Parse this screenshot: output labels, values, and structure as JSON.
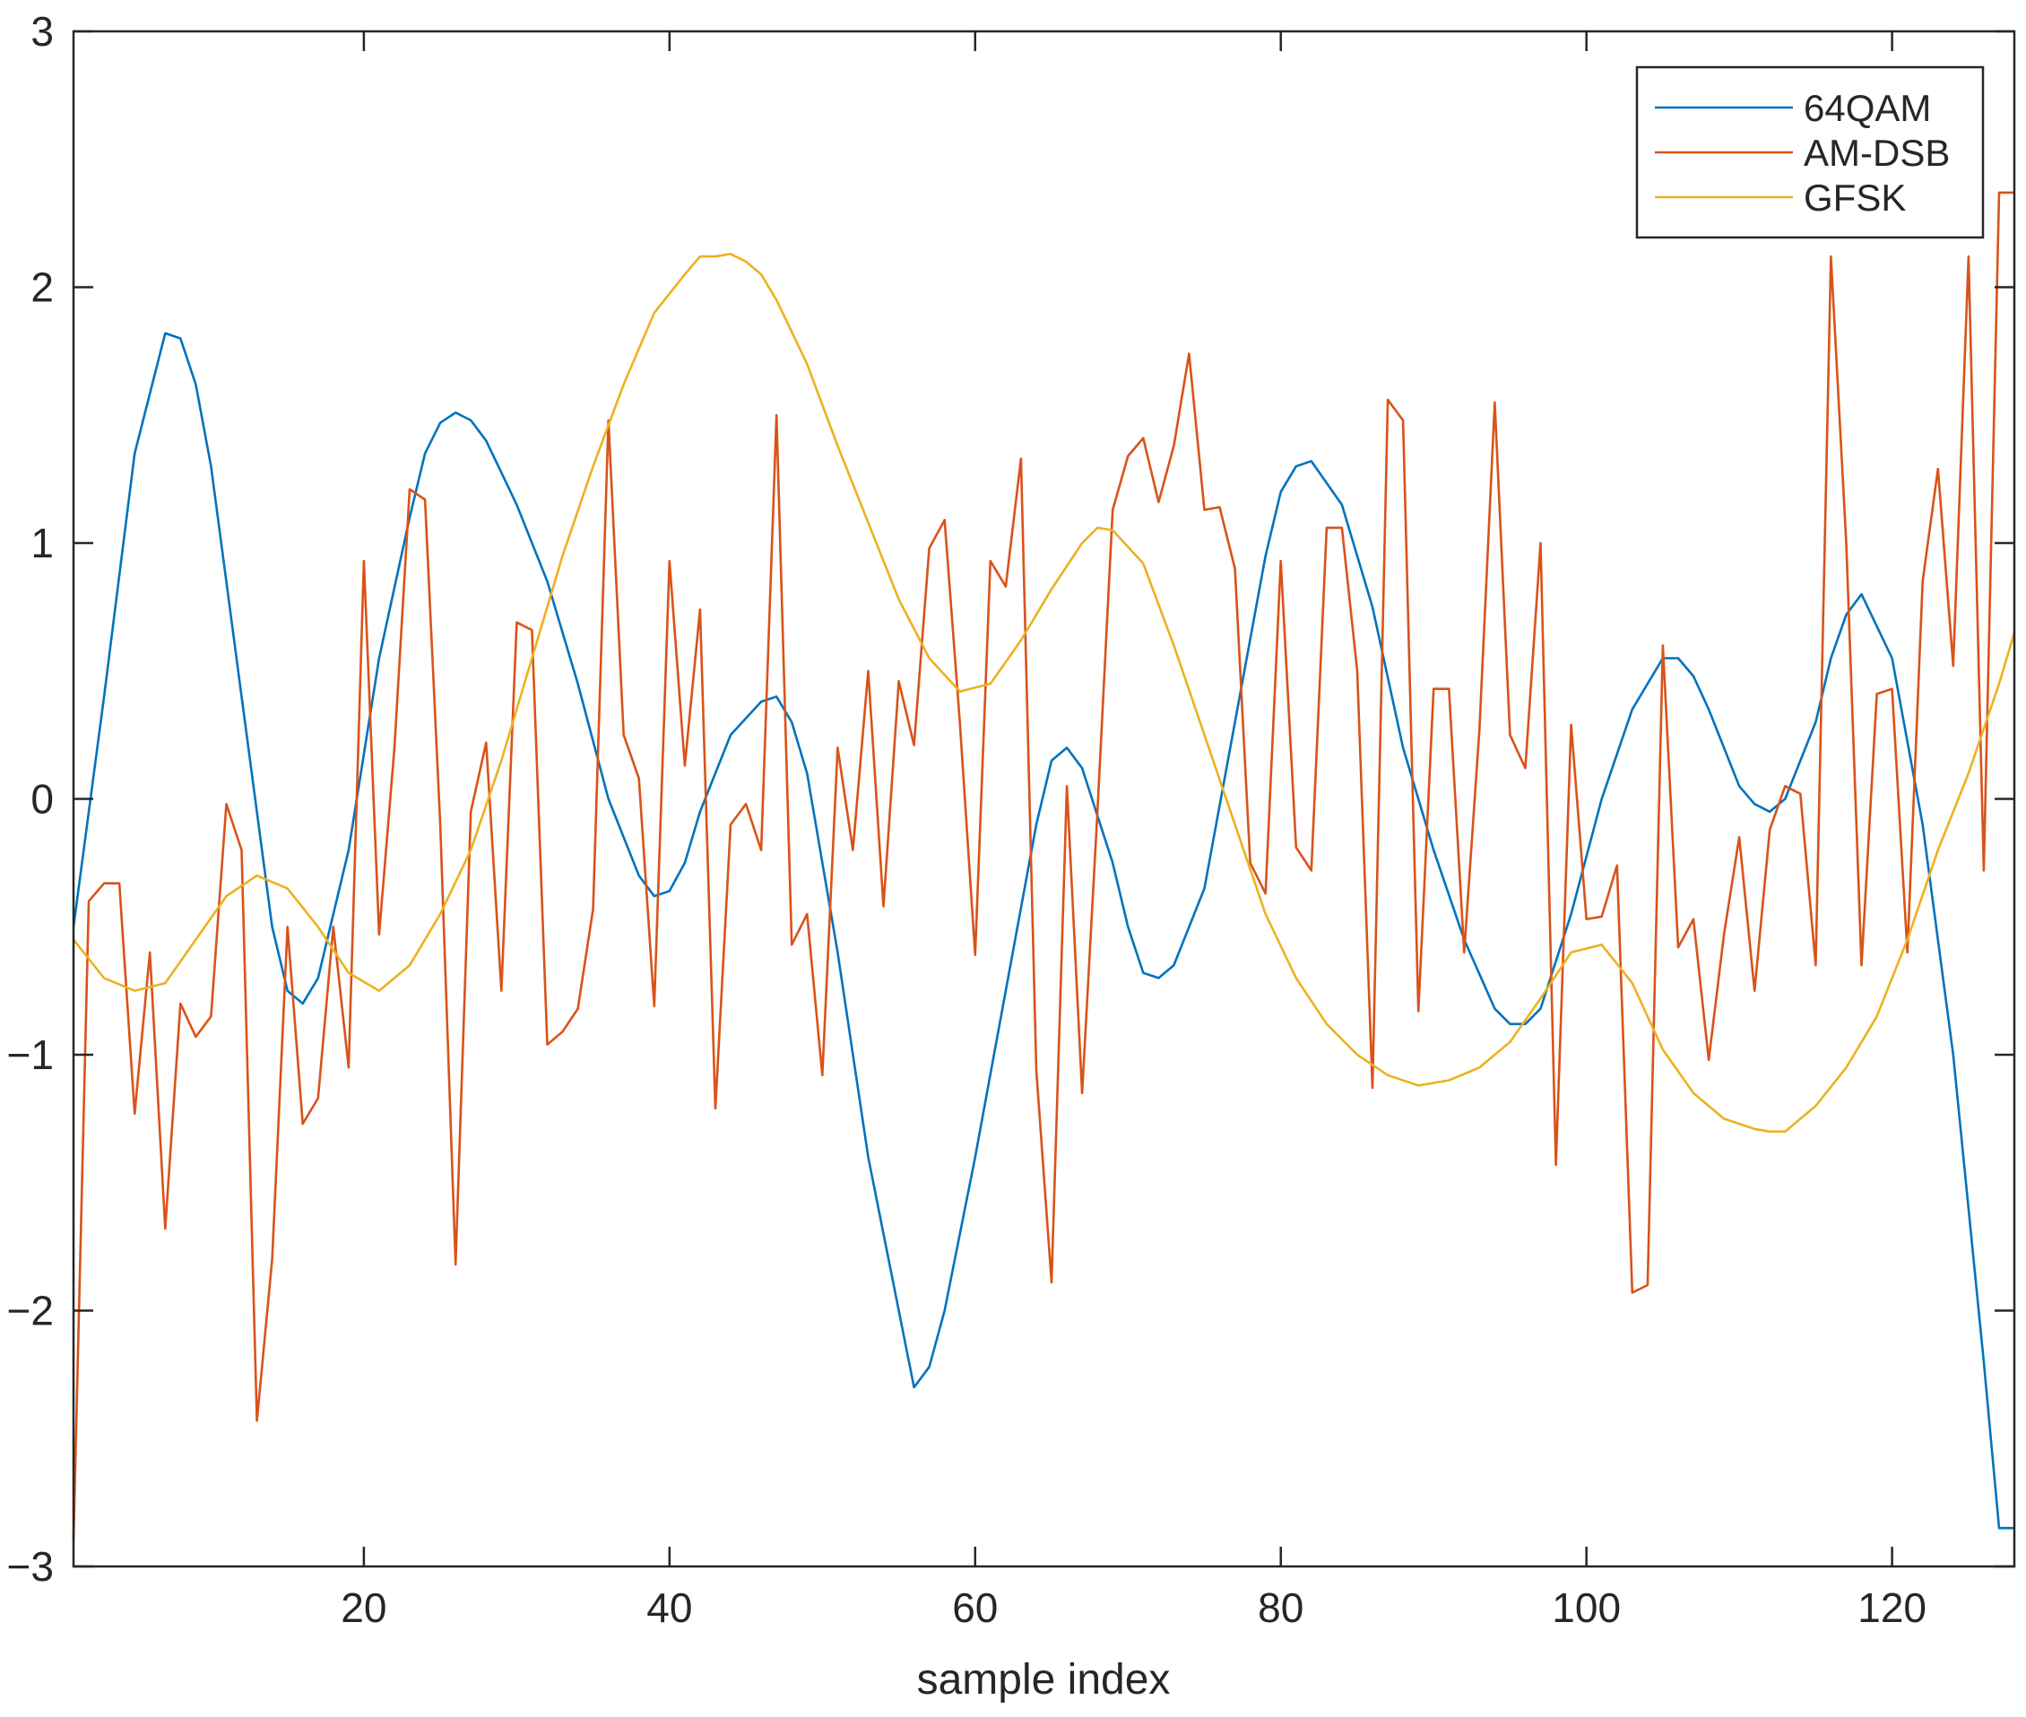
{
  "chart_data": {
    "type": "line",
    "title": "",
    "xlabel": "sample index",
    "ylabel": "",
    "xlim": [
      1,
      128
    ],
    "ylim": [
      -3,
      3
    ],
    "xticks": [
      20,
      40,
      60,
      80,
      100,
      120
    ],
    "xtick_labels": [
      "20",
      "40",
      "60",
      "80",
      "100",
      "120"
    ],
    "yticks": [
      -3,
      -2,
      -1,
      0,
      1,
      2,
      3
    ],
    "ytick_labels": [
      "−3",
      "−2",
      "−1",
      "0",
      "1",
      "2",
      "3"
    ],
    "grid": false,
    "legend_position": "top-right",
    "series": [
      {
        "name": "64QAM",
        "color": "#0072BD",
        "x": [
          1,
          3,
          5,
          7,
          8,
          9,
          10,
          12,
          14,
          15,
          16,
          17,
          19,
          21,
          23,
          24,
          25,
          26,
          27,
          28,
          30,
          32,
          34,
          36,
          38,
          39,
          40,
          41,
          42,
          44,
          46,
          47,
          48,
          49,
          51,
          53,
          55,
          56,
          57,
          58,
          60,
          62,
          64,
          65,
          66,
          67,
          69,
          70,
          71,
          72,
          73,
          75,
          77,
          79,
          80,
          81,
          82,
          84,
          86,
          88,
          90,
          92,
          94,
          95,
          96,
          97,
          99,
          101,
          103,
          105,
          106,
          107,
          108,
          110,
          111,
          112,
          113,
          115,
          116,
          117,
          118,
          120,
          122,
          124,
          126,
          127,
          128
        ],
        "values": [
          -0.5,
          0.4,
          1.35,
          1.82,
          1.8,
          1.62,
          1.3,
          0.4,
          -0.5,
          -0.75,
          -0.8,
          -0.7,
          -0.2,
          0.55,
          1.1,
          1.35,
          1.47,
          1.51,
          1.48,
          1.4,
          1.15,
          0.85,
          0.45,
          0.0,
          -0.3,
          -0.38,
          -0.36,
          -0.25,
          -0.05,
          0.25,
          0.38,
          0.4,
          0.3,
          0.1,
          -0.6,
          -1.4,
          -2.0,
          -2.3,
          -2.22,
          -2.0,
          -1.4,
          -0.75,
          -0.1,
          0.15,
          0.2,
          0.12,
          -0.25,
          -0.5,
          -0.68,
          -0.7,
          -0.65,
          -0.35,
          0.3,
          0.95,
          1.2,
          1.3,
          1.32,
          1.15,
          0.75,
          0.2,
          -0.2,
          -0.55,
          -0.82,
          -0.88,
          -0.88,
          -0.82,
          -0.45,
          0.0,
          0.35,
          0.55,
          0.55,
          0.48,
          0.35,
          0.05,
          -0.02,
          -0.05,
          0.0,
          0.3,
          0.55,
          0.72,
          0.8,
          0.55,
          -0.1,
          -1.0,
          -2.2,
          -2.85,
          -2.85
        ]
      },
      {
        "name": "AM-DSB",
        "color": "#D95319",
        "x": [
          1,
          2,
          3,
          4,
          5,
          6,
          7,
          8,
          9,
          10,
          11,
          12,
          13,
          14,
          15,
          16,
          17,
          18,
          19,
          20,
          21,
          22,
          23,
          24,
          25,
          26,
          27,
          28,
          29,
          30,
          31,
          32,
          33,
          34,
          35,
          36,
          37,
          38,
          39,
          40,
          41,
          42,
          43,
          44,
          45,
          46,
          47,
          48,
          49,
          50,
          51,
          52,
          53,
          54,
          55,
          56,
          57,
          58,
          59,
          60,
          61,
          62,
          63,
          64,
          65,
          66,
          67,
          68,
          69,
          70,
          71,
          72,
          73,
          74,
          75,
          76,
          77,
          78,
          79,
          80,
          81,
          82,
          83,
          84,
          85,
          86,
          87,
          88,
          89,
          90,
          91,
          92,
          93,
          94,
          95,
          96,
          97,
          98,
          99,
          100,
          101,
          102,
          103,
          104,
          105,
          106,
          107,
          108,
          109,
          110,
          111,
          112,
          113,
          114,
          115,
          116,
          117,
          118,
          119,
          120,
          121,
          122,
          123,
          124,
          125,
          126,
          127,
          128
        ],
        "values": [
          -2.9,
          -0.4,
          -0.33,
          -0.33,
          -1.23,
          -0.6,
          -1.68,
          -0.8,
          -0.93,
          -0.85,
          -0.02,
          -0.2,
          -2.43,
          -1.8,
          -0.5,
          -1.27,
          -1.17,
          -0.5,
          -1.05,
          0.93,
          -0.53,
          0.2,
          1.21,
          1.17,
          -0.1,
          -1.82,
          -0.05,
          0.22,
          -0.75,
          0.69,
          0.66,
          -0.96,
          -0.91,
          -0.82,
          -0.43,
          1.48,
          0.25,
          0.08,
          -0.81,
          0.93,
          0.13,
          0.74,
          -1.21,
          -0.1,
          -0.02,
          -0.2,
          1.5,
          -0.57,
          -0.45,
          -1.08,
          0.2,
          -0.2,
          0.5,
          -0.42,
          0.46,
          0.21,
          0.98,
          1.09,
          0.3,
          -0.61,
          0.93,
          0.83,
          1.33,
          -1.06,
          -1.89,
          0.05,
          -1.15,
          -0.05,
          1.13,
          1.34,
          1.41,
          1.16,
          1.38,
          1.74,
          1.13,
          1.14,
          0.9,
          -0.25,
          -0.37,
          0.93,
          -0.19,
          -0.28,
          1.06,
          1.06,
          0.5,
          -1.13,
          1.56,
          1.48,
          -0.83,
          0.43,
          0.43,
          -0.6,
          0.27,
          1.55,
          0.25,
          0.12,
          1.0,
          -1.43,
          0.29,
          -0.47,
          -0.46,
          -0.26,
          -1.93,
          -1.9,
          0.6,
          -0.58,
          -0.47,
          -1.02,
          -0.53,
          -0.15,
          -0.75,
          -0.12,
          0.05,
          0.02,
          -0.65,
          2.12,
          1.0,
          -0.65,
          0.41,
          0.43,
          -0.6,
          0.85,
          1.29,
          0.52,
          2.12,
          -0.28,
          2.37,
          2.37
        ]
      },
      {
        "name": "GFSK",
        "color": "#EDB120",
        "x": [
          1,
          3,
          5,
          7,
          9,
          11,
          13,
          15,
          17,
          19,
          21,
          23,
          25,
          27,
          29,
          31,
          33,
          35,
          37,
          39,
          41,
          42,
          43,
          44,
          45,
          46,
          47,
          49,
          51,
          53,
          55,
          57,
          59,
          61,
          63,
          65,
          67,
          68,
          69,
          71,
          73,
          75,
          77,
          79,
          81,
          83,
          85,
          87,
          89,
          91,
          93,
          95,
          97,
          99,
          101,
          103,
          105,
          107,
          109,
          111,
          112,
          113,
          115,
          117,
          119,
          121,
          123,
          125,
          127,
          128
        ],
        "values": [
          -0.55,
          -0.7,
          -0.75,
          -0.72,
          -0.55,
          -0.38,
          -0.3,
          -0.35,
          -0.5,
          -0.68,
          -0.75,
          -0.65,
          -0.45,
          -0.2,
          0.15,
          0.55,
          0.95,
          1.3,
          1.62,
          1.9,
          2.05,
          2.12,
          2.12,
          2.13,
          2.1,
          2.05,
          1.95,
          1.7,
          1.38,
          1.08,
          0.78,
          0.55,
          0.42,
          0.45,
          0.62,
          0.82,
          1.0,
          1.06,
          1.05,
          0.92,
          0.6,
          0.25,
          -0.1,
          -0.45,
          -0.7,
          -0.88,
          -1.0,
          -1.08,
          -1.12,
          -1.1,
          -1.05,
          -0.95,
          -0.78,
          -0.6,
          -0.57,
          -0.72,
          -0.98,
          -1.15,
          -1.25,
          -1.29,
          -1.3,
          -1.3,
          -1.2,
          -1.05,
          -0.85,
          -0.55,
          -0.2,
          0.1,
          0.45,
          0.65
        ]
      }
    ]
  }
}
